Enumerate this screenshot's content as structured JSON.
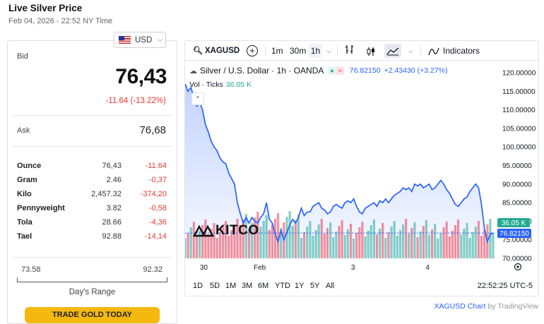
{
  "page": {
    "title": "Live Silver Price",
    "datetime": "Feb 04, 2026 - 22:52 NY Time"
  },
  "currency": {
    "selected": "USD",
    "icon": "us-flag-icon"
  },
  "quote": {
    "bid_label": "Bid",
    "bid": "76,43",
    "change": "-11.64 (-13.22%)",
    "ask_label": "Ask",
    "ask": "76,68"
  },
  "units": [
    {
      "name": "Ounce",
      "price": "76,43",
      "change": "-11.64"
    },
    {
      "name": "Gram",
      "price": "2.46",
      "change": "-0,37"
    },
    {
      "name": "Kilo",
      "price": "2,457.32",
      "change": "-374,20"
    },
    {
      "name": "Pennyweight",
      "price": "3.82",
      "change": "-0,58"
    },
    {
      "name": "Tola",
      "price": "28.66",
      "change": "-4,36"
    },
    {
      "name": "Tael",
      "price": "92.88",
      "change": "-14,14"
    }
  ],
  "day_range": {
    "low": "73.58",
    "high": "92.32",
    "label": "Day's Range"
  },
  "trade_button": "TRADE GOLD TODAY",
  "chart": {
    "symbol": "XAGUSD",
    "intervals": [
      "1m",
      "30m",
      "1h"
    ],
    "selected_interval": "1h",
    "indicators_label": "Indicators",
    "legend_title": "Silver / U.S. Dollar · 1h · OANDA",
    "legend_price": "76.82150",
    "legend_change": "+2.43430 (+3.27%)",
    "vol_label": "Vol · Ticks",
    "vol_value": "36.05 K",
    "watermark": "KITCO",
    "ranges": [
      "1D",
      "5D",
      "1M",
      "3M",
      "6M",
      "YTD",
      "1Y",
      "5Y",
      "All"
    ],
    "clock": "22:52:25 UTC-5",
    "attribution_link": "XAGUSD Chart",
    "attribution_by": "by TradingView",
    "colors": {
      "line": "#2962ff",
      "up": "#22ab94",
      "down": "#f23645"
    }
  },
  "chart_data": {
    "type": "line",
    "title": "Silver / U.S. Dollar · 1h · OANDA",
    "y_ticks": [
      "120.00000",
      "115.00000",
      "110.00000",
      "105.00000",
      "100.00000",
      "95.00000",
      "90.00000",
      "85.00000",
      "80.00000",
      "75.00000",
      "70.00000"
    ],
    "ylim": [
      70,
      120
    ],
    "x_ticks": [
      "30",
      "Feb",
      "3",
      "4"
    ],
    "last_price_label": "76.82150",
    "last_volume_label": "36.05 K",
    "series": [
      {
        "values": [
          117,
          115,
          116,
          113.5,
          111,
          112,
          110,
          106,
          104,
          101.5,
          100,
          99,
          97,
          96,
          95.5,
          93,
          91.5,
          90,
          85,
          82,
          79.5,
          81,
          79.5,
          81,
          80,
          79.5,
          81,
          82,
          85,
          80.5,
          79.5,
          76.5,
          74.5,
          77.5,
          75,
          77,
          79,
          80.5,
          79.5,
          81,
          83.5,
          81.5,
          82.5,
          82.5,
          84,
          84.5,
          85,
          83.5,
          83,
          82,
          82.5,
          84,
          84.5,
          84,
          83.5,
          85,
          85.5,
          85,
          86,
          84,
          82.5,
          82,
          83.5,
          84,
          84.5,
          85,
          84,
          85.5,
          85,
          86,
          85,
          86,
          87,
          87.5,
          88,
          89,
          88.5,
          89,
          88,
          90,
          89.5,
          90,
          89,
          89.5,
          90,
          88.5,
          89,
          90,
          91,
          90,
          88.5,
          87.5,
          86,
          84.5,
          84,
          85,
          86,
          86.5,
          88,
          89,
          90,
          89,
          84.5,
          78,
          74.5,
          76.5,
          76.82
        ]
      }
    ],
    "volume_color_pattern": "green-up red-down"
  }
}
